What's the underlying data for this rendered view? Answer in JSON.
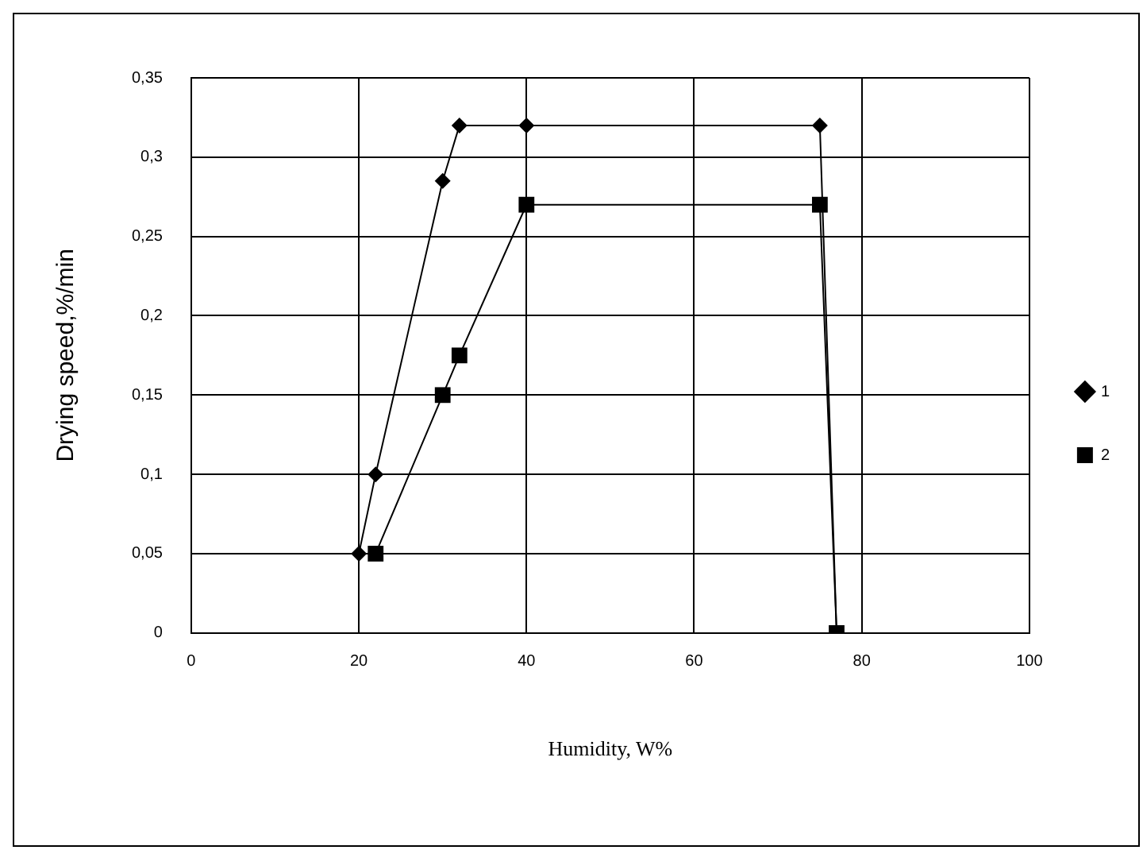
{
  "chart_data": {
    "type": "line",
    "xlabel": "Humidity, W%",
    "ylabel": "Drying speed,%/min",
    "series": [
      {
        "name": "1",
        "color": "#000000",
        "marker": "diamond",
        "x": [
          20,
          22,
          30,
          32,
          40,
          75,
          77
        ],
        "values": [
          0.05,
          0.1,
          0.285,
          0.32,
          0.32,
          0.32,
          0
        ]
      },
      {
        "name": "2",
        "color": "#000000",
        "marker": "square",
        "x": [
          22,
          30,
          32,
          40,
          75,
          77
        ],
        "values": [
          0.05,
          0.15,
          0.175,
          0.27,
          0.27,
          0
        ]
      }
    ],
    "xlim": [
      0,
      100
    ],
    "xticks": [
      0,
      20,
      40,
      60,
      80,
      100
    ],
    "ylim": [
      0,
      0.35
    ],
    "yticks": [
      {
        "value": 0,
        "label": "0"
      },
      {
        "value": 0.05,
        "label": "0,05"
      },
      {
        "value": 0.1,
        "label": "0,1"
      },
      {
        "value": 0.15,
        "label": "0,15"
      },
      {
        "value": 0.2,
        "label": "0,2"
      },
      {
        "value": 0.25,
        "label": "0,25"
      },
      {
        "value": 0.3,
        "label": "0,3"
      },
      {
        "value": 0.35,
        "label": "0,35"
      }
    ],
    "grid": true,
    "legend": "right"
  }
}
